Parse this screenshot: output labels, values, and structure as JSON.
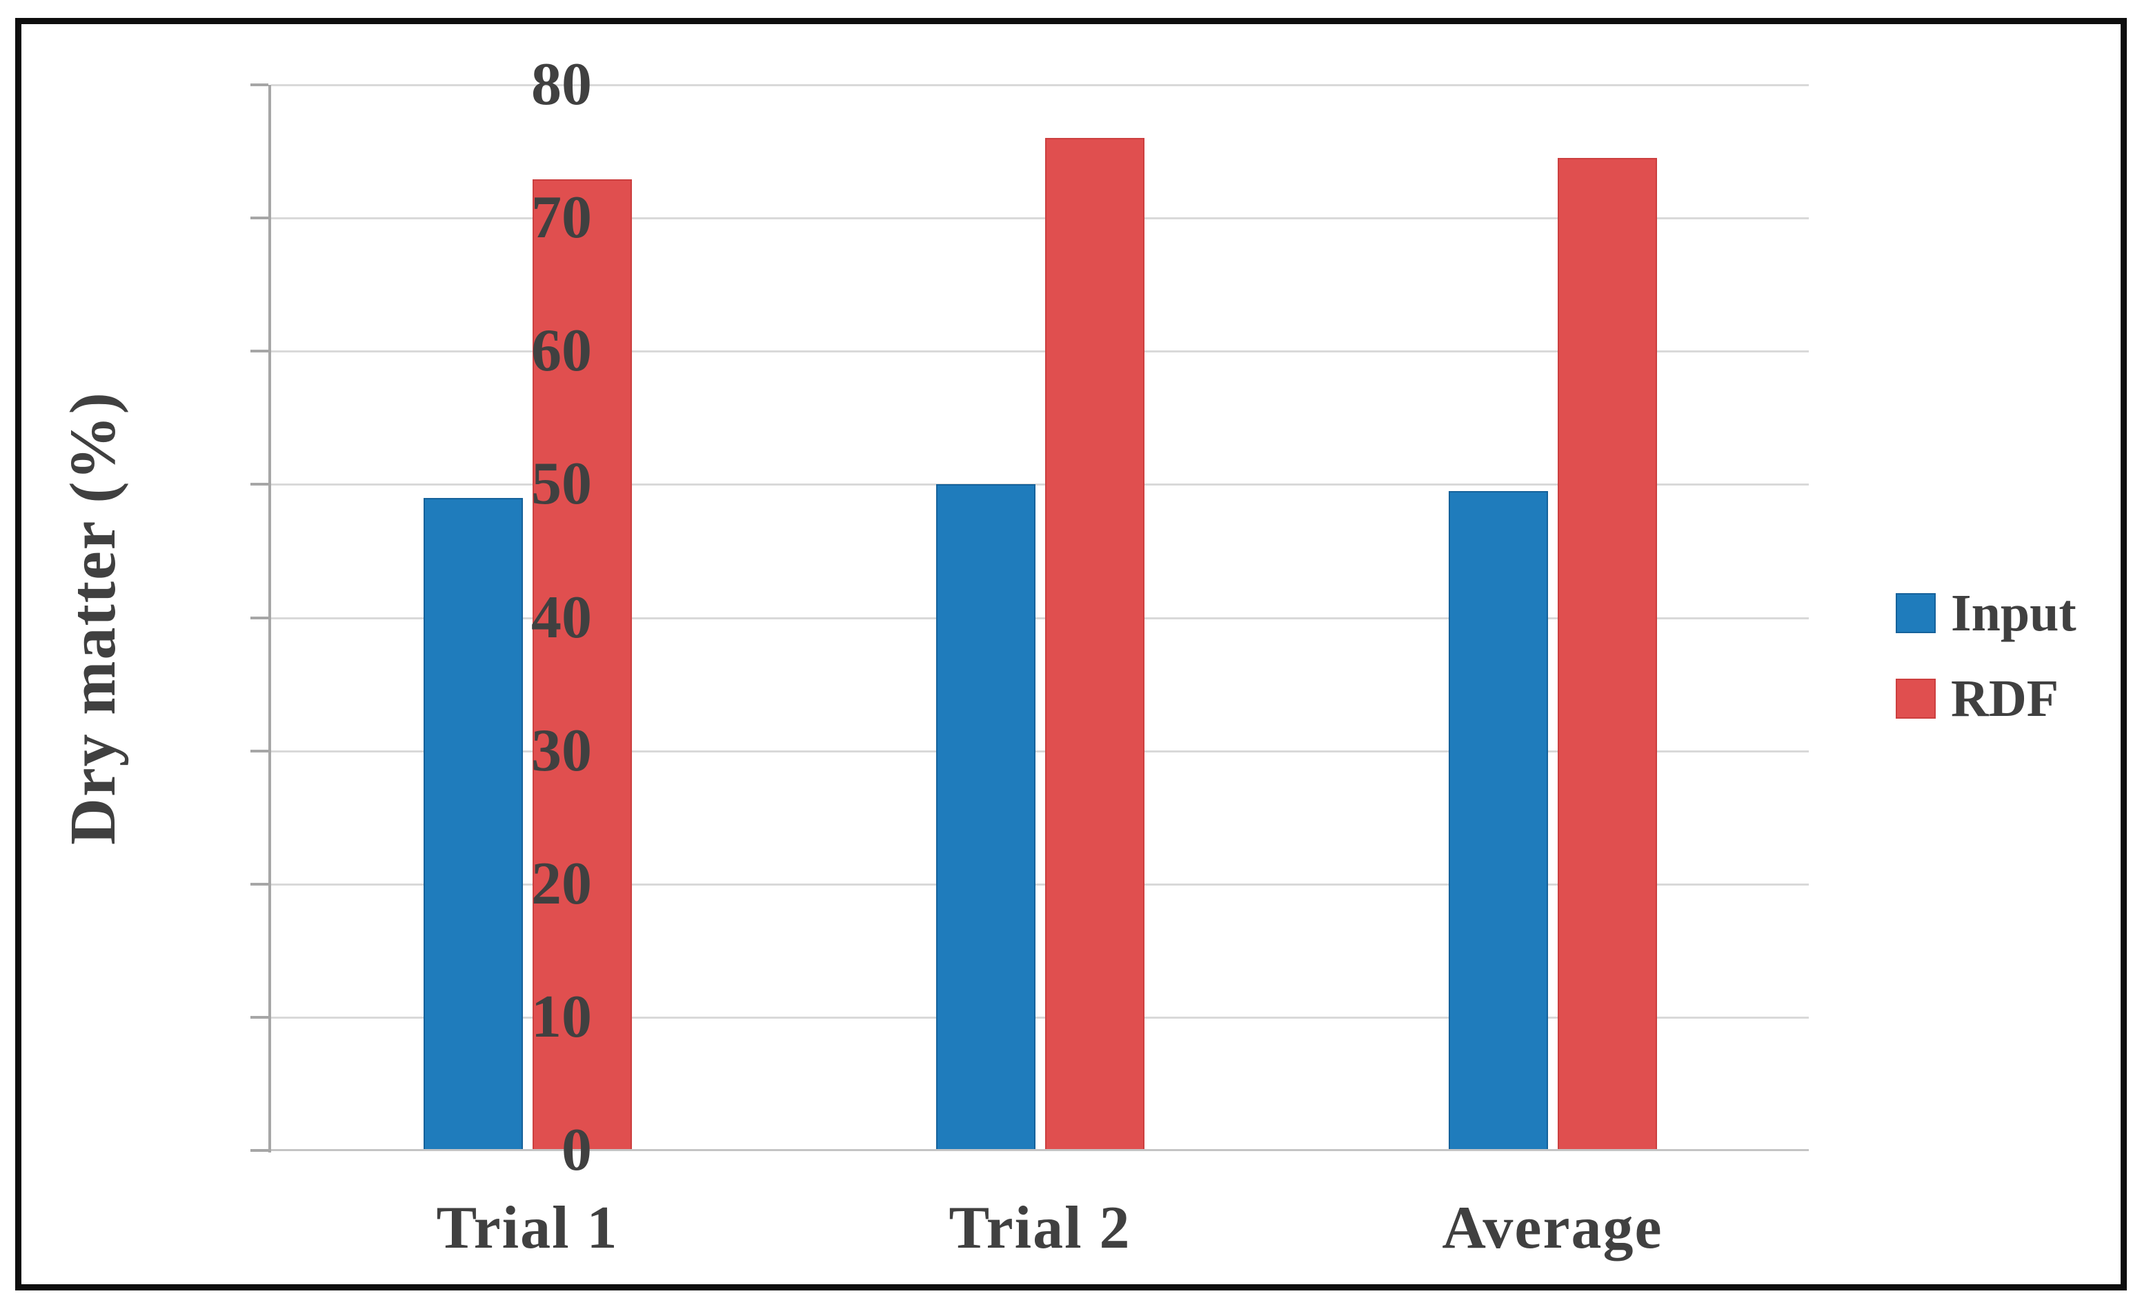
{
  "figure": {
    "background": "#FFFFFF",
    "border_color": "#0E0E0E"
  },
  "chart_data": {
    "type": "bar",
    "title": "",
    "categories": [
      "Trial 1",
      "Trial 2",
      "Average"
    ],
    "series": [
      {
        "name": "Input",
        "color": "#1F7CBC",
        "border_color": "#15629B",
        "values": [
          49,
          50,
          49.5
        ]
      },
      {
        "name": "RDF",
        "color": "#E04F4F",
        "border_color": "#CC3F3F",
        "values": [
          72.9,
          76,
          74.5
        ]
      }
    ],
    "xlabel": "",
    "ylabel": "Dry matter (%)",
    "ylim": [
      0,
      80
    ],
    "yticks": [
      "0",
      "10",
      "20",
      "30",
      "40",
      "50",
      "60",
      "70",
      "80"
    ],
    "grid": "horizontal-only",
    "legend_position": "right",
    "colors": {
      "gridline": "#D9D9D9",
      "baseline": "#C4C4C4",
      "axis_line": "#A6A6A6",
      "text": "#404040"
    }
  }
}
